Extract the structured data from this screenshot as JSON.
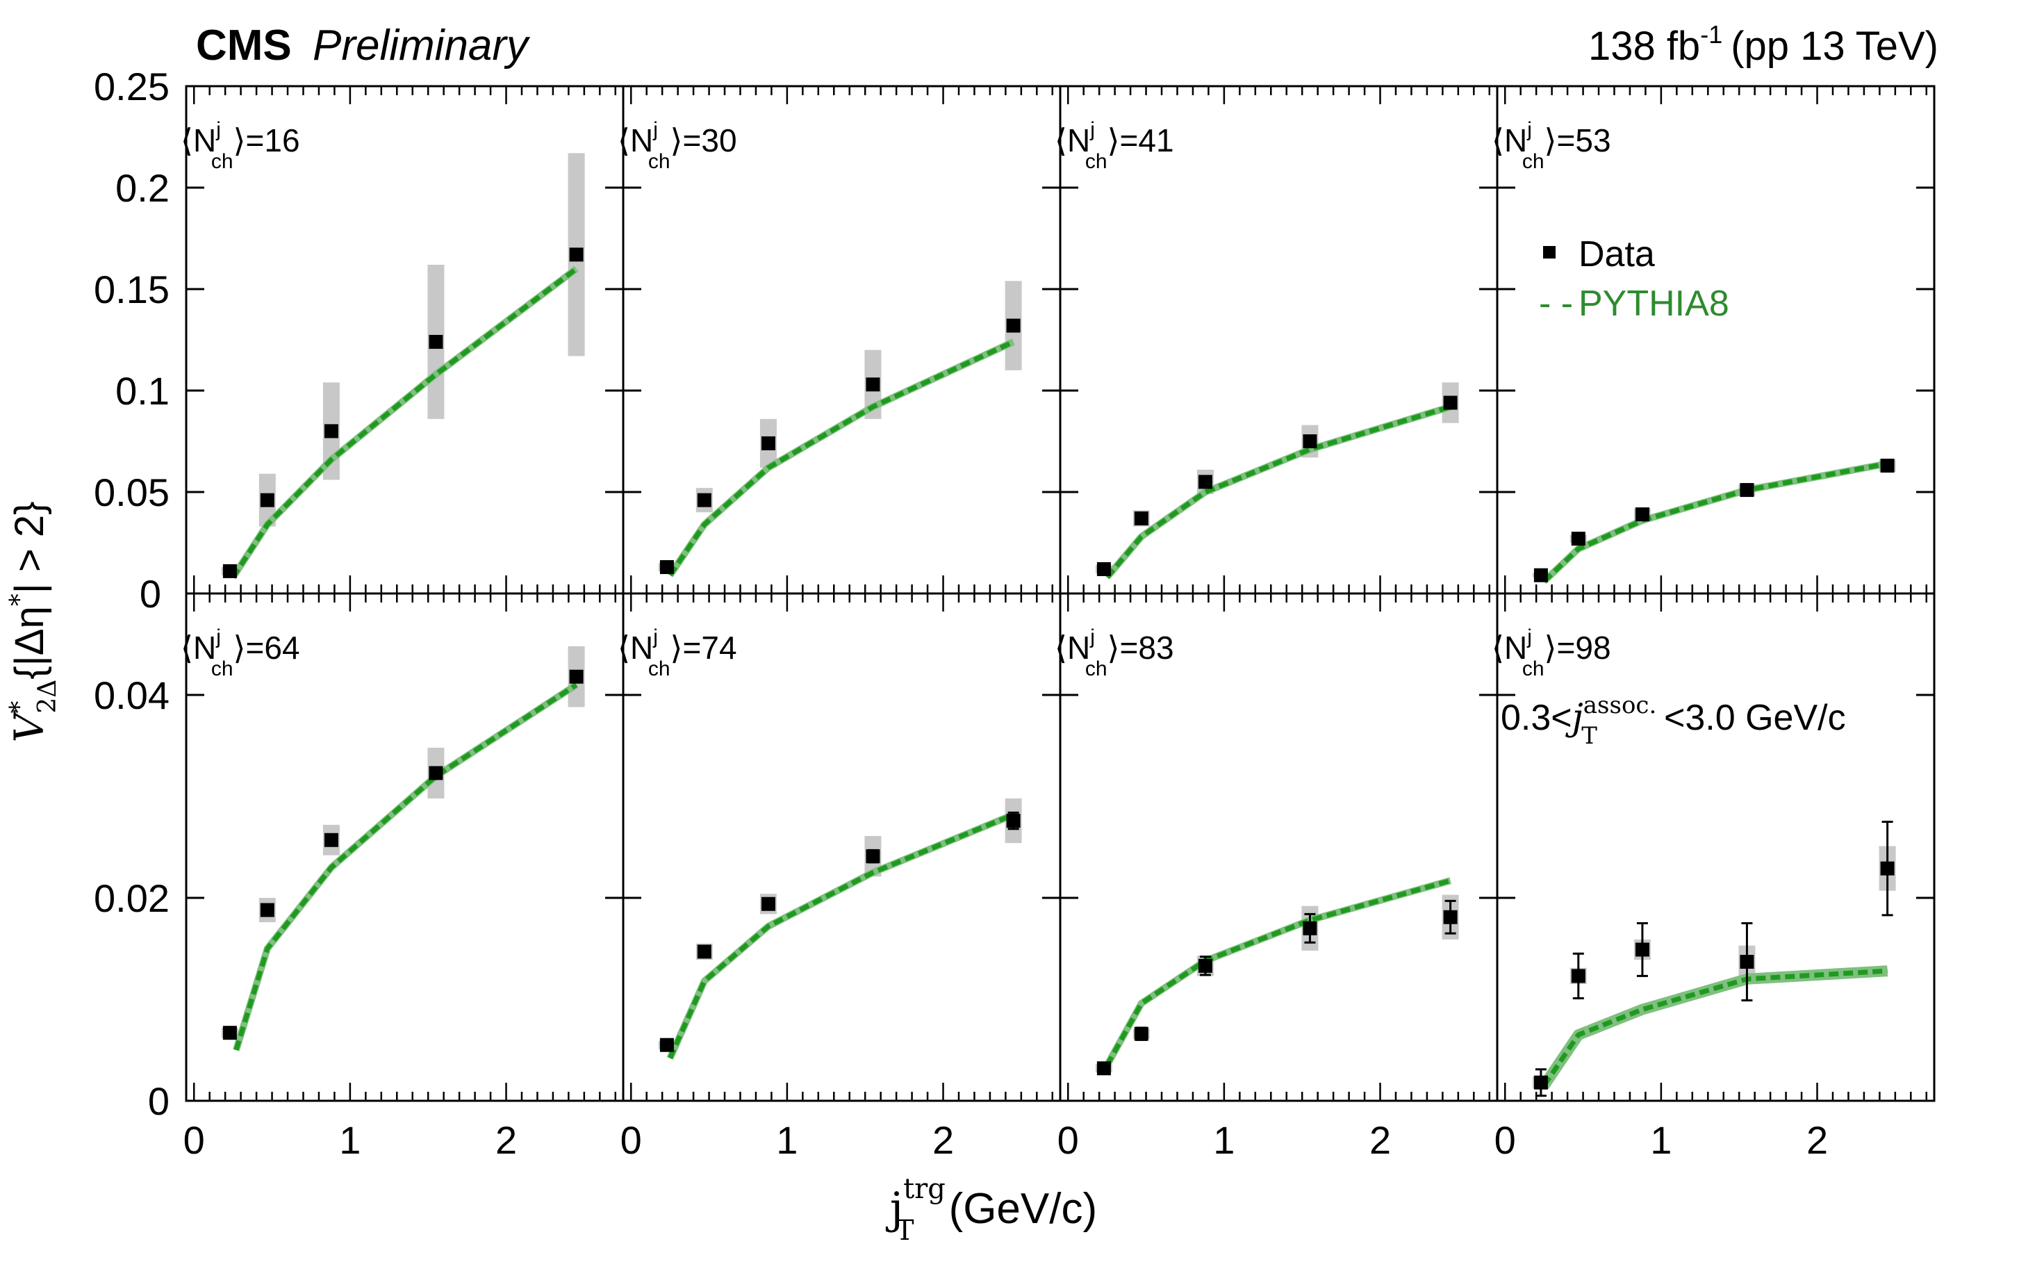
{
  "header": {
    "experiment": "CMS",
    "status": "Preliminary",
    "lumi_value": "138 fb",
    "lumi_exp": "-1",
    "lumi_rest": "(pp 13 TeV)"
  },
  "colors": {
    "data_marker": "#000000",
    "syst_band": "#c8c8c8",
    "pythia_line": "#1f9a1f",
    "pythia_band": "#7fbf7f",
    "pythia_text": "#2e8b2e"
  },
  "legend": {
    "data_label": "Data",
    "model_label": "PYTHIA8",
    "model_marker": "- -"
  },
  "cut_label": {
    "prefix": "0.3<",
    "var": "j",
    "sub": "T",
    "sup": "assoc.",
    "suffix": "<3.0 GeV/c"
  },
  "ylabel": {
    "main": "V",
    "sub": "2Δ",
    "sup": "*",
    "rest": "{|Δη",
    "rest_sup": "*",
    "rest2": "| > 2}"
  },
  "xlabel": {
    "main": "j",
    "sub": "T",
    "sup": "trg",
    "unit": "(GeV/c)"
  },
  "panel_label": {
    "sym": "N",
    "sub": "ch",
    "sup": "j"
  },
  "chart_data": {
    "type": "scatter",
    "title": "CMS Preliminary",
    "xlabel": "j_T^trg (GeV/c)",
    "ylabel": "V*_2Δ{|Δη*| > 2}",
    "xlim": [
      -0.05,
      2.75
    ],
    "x_ticks": [
      "0",
      "1",
      "2"
    ],
    "x_tick_values": [
      0,
      1,
      2
    ],
    "x": [
      0.23,
      0.47,
      0.88,
      1.55,
      2.45
    ],
    "rows": [
      {
        "ylim": [
          0,
          0.25
        ],
        "y_ticks": [
          "0.25",
          "0.2",
          "0.15",
          "0.1",
          "0.05"
        ],
        "y_tick_values": [
          0.25,
          0.2,
          0.15,
          0.1,
          0.05
        ]
      },
      {
        "ylim": [
          0,
          0.05
        ],
        "y_ticks": [
          "0.04",
          "0.02",
          "0"
        ],
        "y_tick_values": [
          0.04,
          0.02,
          0.0
        ]
      }
    ],
    "shared_zero_label": "0",
    "panels": [
      {
        "nch": "16",
        "row": 0,
        "data": [
          0.011,
          0.046,
          0.08,
          0.124,
          0.167
        ],
        "syst": [
          0.002,
          0.013,
          0.024,
          0.038,
          0.05
        ],
        "stat": [
          0,
          0,
          0,
          0,
          0
        ],
        "pythia_x": [
          0.25,
          0.47,
          0.88,
          1.55,
          2.45
        ],
        "pythia": [
          0.008,
          0.034,
          0.066,
          0.108,
          0.16
        ]
      },
      {
        "nch": "30",
        "row": 0,
        "data": [
          0.013,
          0.046,
          0.074,
          0.103,
          0.132
        ],
        "syst": [
          0.002,
          0.006,
          0.012,
          0.017,
          0.022
        ],
        "stat": [
          0,
          0,
          0,
          0,
          0
        ],
        "pythia_x": [
          0.25,
          0.47,
          0.88,
          1.55,
          2.45
        ],
        "pythia": [
          0.009,
          0.034,
          0.062,
          0.092,
          0.124
        ]
      },
      {
        "nch": "41",
        "row": 0,
        "data": [
          0.012,
          0.037,
          0.055,
          0.075,
          0.094
        ],
        "syst": [
          0.002,
          0.004,
          0.006,
          0.008,
          0.01
        ],
        "stat": [
          0,
          0,
          0,
          0,
          0
        ],
        "pythia_x": [
          0.25,
          0.47,
          0.88,
          1.55,
          2.45
        ],
        "pythia": [
          0.008,
          0.028,
          0.05,
          0.071,
          0.092
        ]
      },
      {
        "nch": "53",
        "row": 0,
        "data": [
          0.009,
          0.027,
          0.039,
          0.051,
          0.063
        ],
        "syst": [
          0.001,
          0.002,
          0.003,
          0.003,
          0.003
        ],
        "stat": [
          0,
          0,
          0,
          0,
          0
        ],
        "pythia_x": [
          0.25,
          0.47,
          0.88,
          1.55,
          2.45
        ],
        "pythia": [
          0.006,
          0.022,
          0.036,
          0.051,
          0.064
        ]
      },
      {
        "nch": "64",
        "row": 1,
        "data": [
          0.0067,
          0.0188,
          0.0257,
          0.0323,
          0.0418
        ],
        "syst": [
          0.0005,
          0.0012,
          0.0015,
          0.0025,
          0.003
        ],
        "stat": [
          0,
          0,
          0,
          0,
          0
        ],
        "pythia_x": [
          0.27,
          0.47,
          0.88,
          1.55,
          2.45
        ],
        "pythia": [
          0.005,
          0.015,
          0.023,
          0.032,
          0.041
        ]
      },
      {
        "nch": "74",
        "row": 1,
        "data": [
          0.0055,
          0.0147,
          0.0194,
          0.0241,
          0.0276
        ],
        "syst": [
          0.0004,
          0.0008,
          0.001,
          0.002,
          0.0022
        ],
        "stat": [
          0,
          0,
          0,
          0.0006,
          0.0008
        ],
        "pythia_x": [
          0.25,
          0.47,
          0.88,
          1.55,
          2.45
        ],
        "pythia": [
          0.0042,
          0.0118,
          0.0172,
          0.0225,
          0.0282
        ]
      },
      {
        "nch": "83",
        "row": 1,
        "data": [
          0.0032,
          0.0066,
          0.0133,
          0.017,
          0.0181
        ],
        "syst": [
          0.0004,
          0.0005,
          0.001,
          0.0022,
          0.0022
        ],
        "stat": [
          0,
          0.0006,
          0.0009,
          0.0014,
          0.0016
        ],
        "pythia_x": [
          0.25,
          0.47,
          0.88,
          1.55,
          2.45
        ],
        "pythia": [
          0.0035,
          0.0096,
          0.0138,
          0.0178,
          0.0217
        ]
      },
      {
        "nch": "98",
        "row": 1,
        "data": [
          0.0018,
          0.0123,
          0.0149,
          0.0137,
          0.0229
        ],
        "syst": [
          0.0006,
          0.0008,
          0.001,
          0.0016,
          0.0022
        ],
        "stat": [
          0.0013,
          0.0022,
          0.0026,
          0.0038,
          0.0046
        ],
        "pythia_x": [
          0.25,
          0.47,
          0.88,
          1.55,
          2.45
        ],
        "pythia": [
          0.0015,
          0.0065,
          0.009,
          0.012,
          0.0128
        ]
      }
    ]
  }
}
